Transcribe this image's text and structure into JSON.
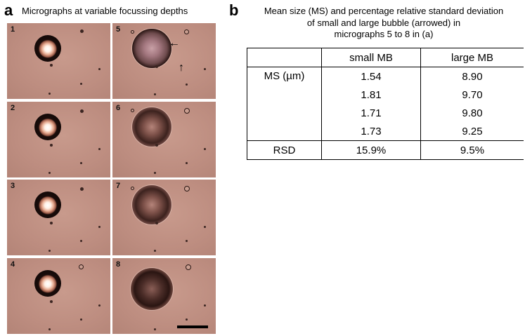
{
  "panel_a": {
    "letter": "a",
    "title": "Micrographs at variable focussing depths",
    "micrographs": [
      "1",
      "2",
      "3",
      "4",
      "5",
      "6",
      "7",
      "8"
    ]
  },
  "panel_b": {
    "letter": "b",
    "title_lines": [
      "Mean size (MS) and percentage relative standard deviation",
      "of small and large bubble (arrowed) in",
      "micrographs 5 to 8 in (a)"
    ],
    "table": {
      "headers": [
        "",
        "small MB",
        "large MB"
      ],
      "ms_label": "MS (µm)",
      "ms_rows": [
        [
          "1.54",
          "8.90"
        ],
        [
          "1.81",
          "9.70"
        ],
        [
          "1.71",
          "9.80"
        ],
        [
          "1.73",
          "9.25"
        ]
      ],
      "rsd_label": "RSD",
      "rsd_row": [
        "15.9%",
        "9.5%"
      ]
    }
  },
  "icons": [
    "arrow-left-icon",
    "arrow-up-icon",
    "scale-bar"
  ]
}
